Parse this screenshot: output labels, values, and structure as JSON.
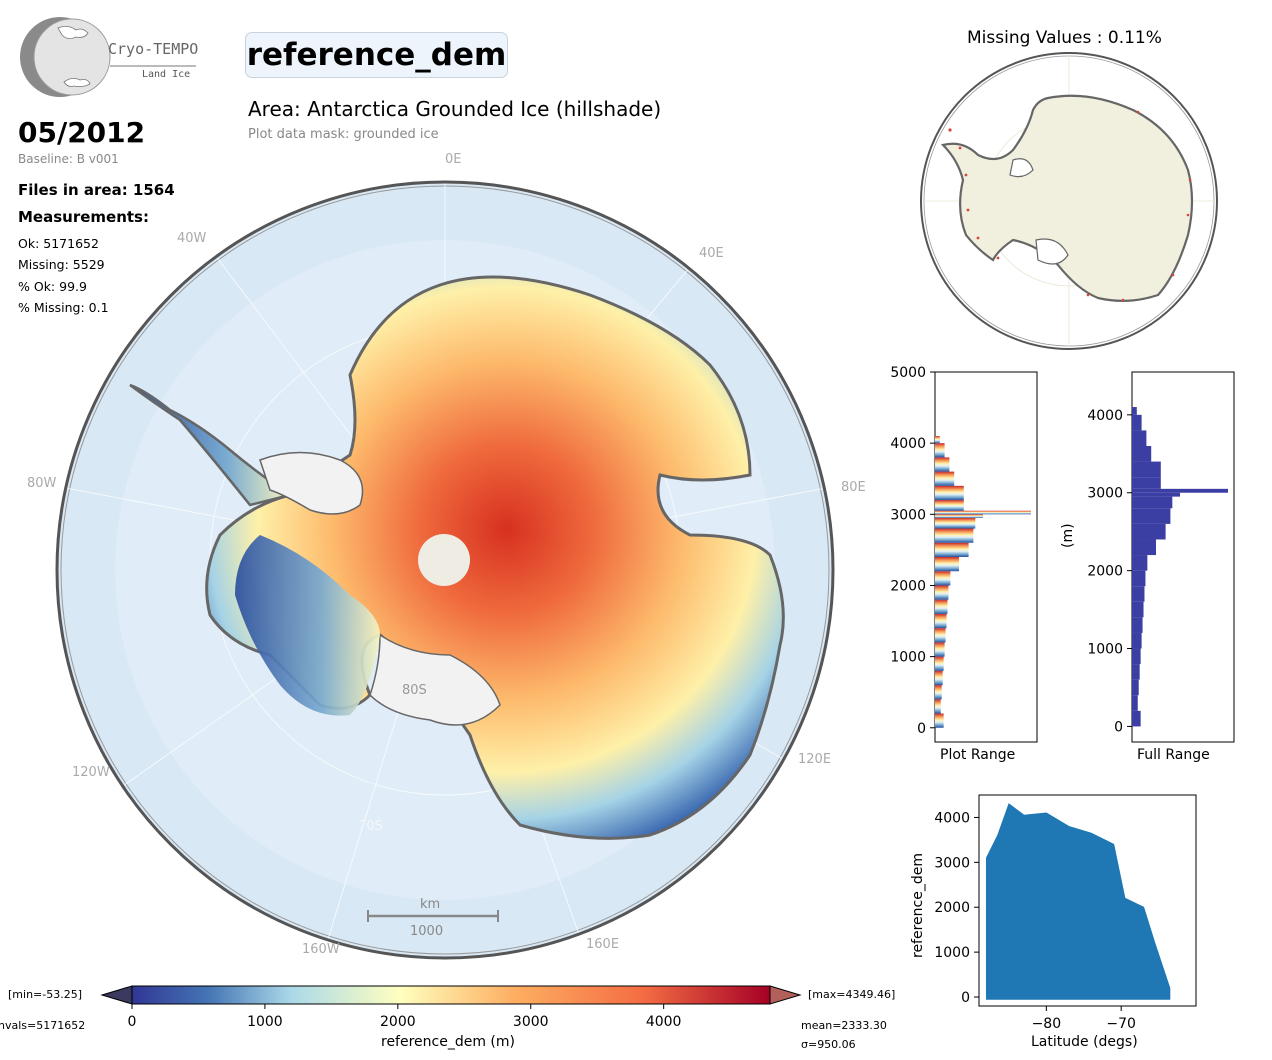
{
  "logo": {
    "name": "Cryo-TEMPO",
    "sub": "Land Ice"
  },
  "variable": "reference_dem",
  "area_title": "Area: Antarctica Grounded Ice (hillshade)",
  "mask_text": "Plot data mask: grounded ice",
  "date": "05/2012",
  "baseline": "Baseline: B v001",
  "files": "Files in area: 1564",
  "measurements": {
    "title": "Measurements:",
    "ok": "Ok: 5171652",
    "missing": "Missing: 5529",
    "pct_ok": "% Ok: 99.9",
    "pct_missing": "% Missing: 0.1"
  },
  "map": {
    "lon_labels": {
      "0E": "0E",
      "40W": "40W",
      "40E": "40E",
      "80W": "80W",
      "80E": "80E",
      "120W": "120W",
      "120E": "120E",
      "160W": "160W",
      "160E": "160E"
    },
    "lat_labels": {
      "80S": "80S",
      "70S": "70S"
    },
    "scale_unit": "km",
    "scale_value": "1000"
  },
  "inset": {
    "title": "Missing Values : 0.11%"
  },
  "colorbar": {
    "label": "reference_dem (m)",
    "min_text": "[min=-53.25]",
    "max_text": "[max=4349.46]",
    "nvals_text": "nvals=5171652",
    "mean_text": "mean=2333.30",
    "sigma_text": "σ=950.06",
    "ticks": [
      "0",
      "1000",
      "2000",
      "3000",
      "4000"
    ],
    "range": [
      0,
      4800
    ]
  },
  "chart_data": [
    {
      "type": "bar",
      "orientation": "horizontal",
      "xlabel": "Plot Range",
      "ylabel": "",
      "ylim": [
        -200,
        5000
      ],
      "yticks": [
        0,
        1000,
        2000,
        3000,
        4000,
        5000
      ],
      "bins": [
        0,
        200,
        400,
        600,
        800,
        1000,
        1200,
        1400,
        1600,
        1800,
        2000,
        2200,
        2400,
        2600,
        2800,
        2950,
        3000,
        3050,
        3200,
        3400,
        3600,
        3800,
        4000
      ],
      "values": [
        0.09,
        0.06,
        0.07,
        0.08,
        0.09,
        0.1,
        0.11,
        0.12,
        0.13,
        0.14,
        0.16,
        0.25,
        0.35,
        0.4,
        0.42,
        0.5,
        1.0,
        0.3,
        0.3,
        0.2,
        0.15,
        0.1,
        0.05
      ]
    },
    {
      "type": "bar",
      "orientation": "horizontal",
      "xlabel": "Full Range",
      "ylabel": "(m)",
      "ylim": [
        -200,
        4550
      ],
      "yticks": [
        0,
        1000,
        2000,
        3000,
        4000
      ],
      "bins": [
        0,
        200,
        400,
        600,
        800,
        1000,
        1200,
        1400,
        1600,
        1800,
        2000,
        2200,
        2400,
        2600,
        2800,
        2950,
        3000,
        3050,
        3200,
        3400,
        3600,
        3800,
        4000
      ],
      "values": [
        0.09,
        0.06,
        0.07,
        0.08,
        0.09,
        0.1,
        0.11,
        0.12,
        0.13,
        0.14,
        0.16,
        0.25,
        0.35,
        0.4,
        0.42,
        0.5,
        1.0,
        0.3,
        0.3,
        0.2,
        0.15,
        0.1,
        0.05
      ],
      "color": "#3b3ea3"
    },
    {
      "type": "scatter",
      "xlabel": "Latitude (degs)",
      "ylabel": "reference_dem",
      "xlim": [
        -89,
        -60
      ],
      "ylim": [
        -200,
        4500
      ],
      "xticks": [
        -80,
        -70
      ],
      "yticks": [
        0,
        1000,
        2000,
        3000,
        4000
      ],
      "color": "#1f77b4",
      "envelope": [
        [
          -88,
          3100
        ],
        [
          -86.5,
          3600
        ],
        [
          -85,
          4300
        ],
        [
          -83,
          4050
        ],
        [
          -80,
          4100
        ],
        [
          -77,
          3800
        ],
        [
          -74,
          3650
        ],
        [
          -71,
          3400
        ],
        [
          -69.5,
          2200
        ],
        [
          -67,
          2000
        ],
        [
          -65.5,
          1200
        ],
        [
          -63.5,
          200
        ]
      ]
    }
  ]
}
